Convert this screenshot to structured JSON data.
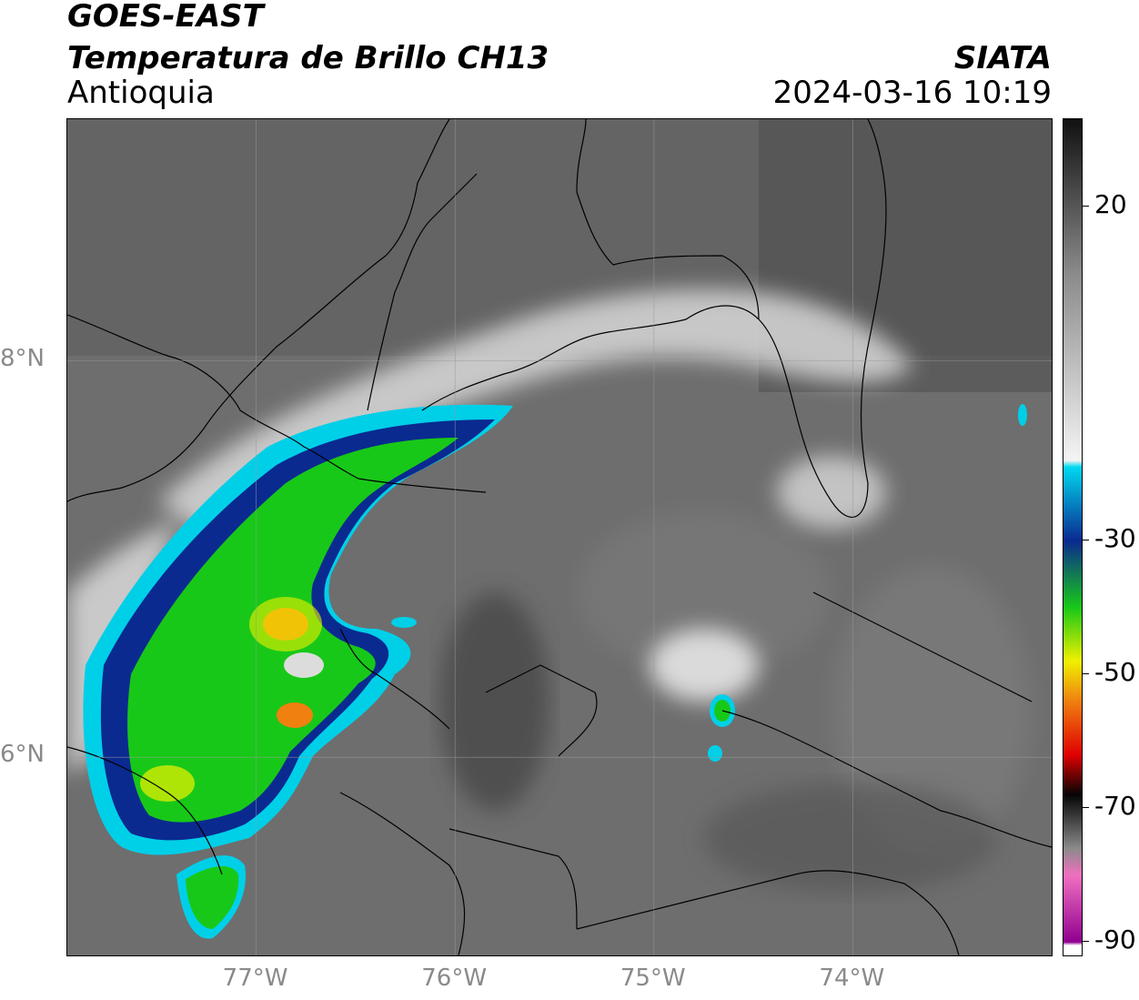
{
  "header": {
    "satellite": "GOES-EAST",
    "product": "Temperatura de Brillo CH13",
    "region": "Antioquia",
    "organization": "SIATA",
    "timestamp": "2024-03-16 10:19"
  },
  "map": {
    "latitude_labels": [
      {
        "label": "8°N",
        "lat": 8
      },
      {
        "label": "6°N",
        "lat": 6
      }
    ],
    "longitude_labels": [
      {
        "label": "77°W",
        "lon": -77
      },
      {
        "label": "76°W",
        "lon": -76
      },
      {
        "label": "75°W",
        "lon": -75
      },
      {
        "label": "74°W",
        "lon": -74
      }
    ],
    "extent": {
      "lon_min": -77.95,
      "lon_max": -73.0,
      "lat_min": 5.0,
      "lat_max": 9.22
    },
    "gridlines": true
  },
  "colorbar": {
    "ticks": [
      "20",
      "-30",
      "-50",
      "-70",
      "-90"
    ],
    "tick_values": [
      20,
      -30,
      -50,
      -70,
      -90
    ],
    "range": [
      -92,
      33
    ],
    "colors": {
      "warm_gray_top": "#111111",
      "gray_mid": "#8a8a8a",
      "white": "#f4f4f4",
      "cyan": "#00d8f0",
      "blue": "#0a2a90",
      "green": "#18c818",
      "yellow": "#f0f000",
      "orange": "#f08010",
      "red": "#e00000",
      "black": "#050505",
      "pink": "#f070c0",
      "purple": "#900090"
    }
  }
}
